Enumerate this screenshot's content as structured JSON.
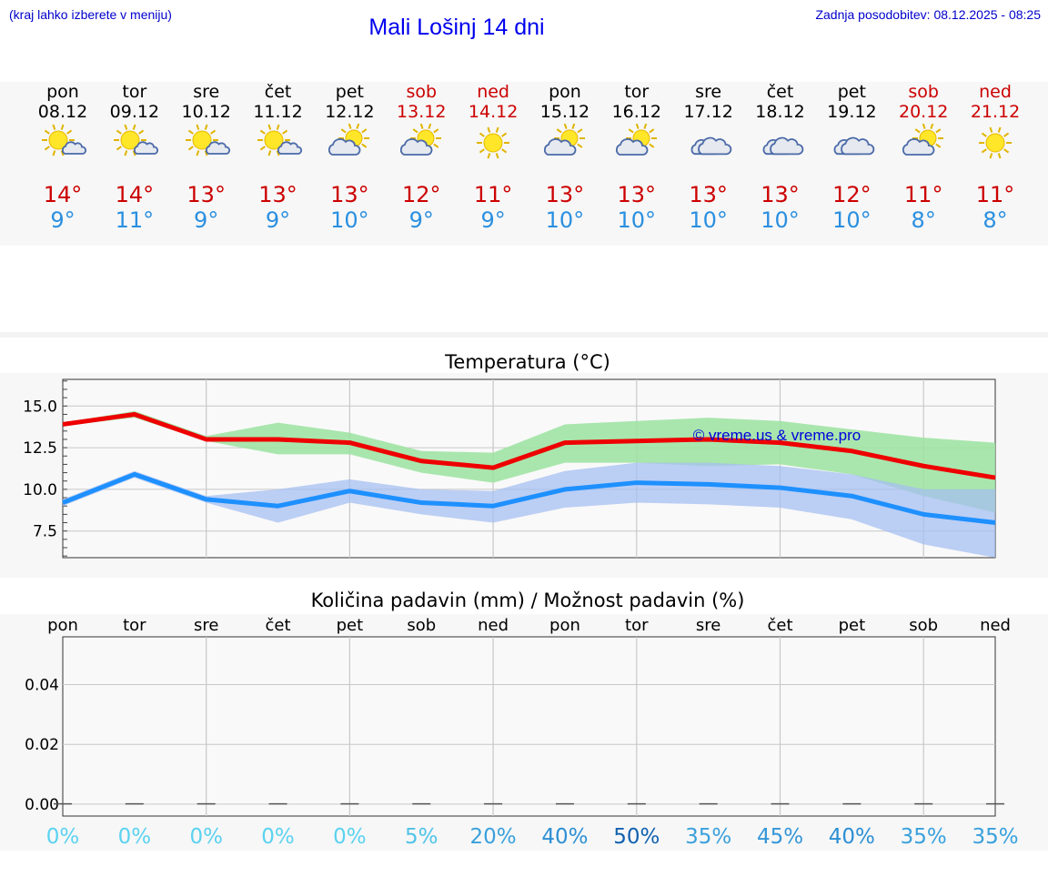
{
  "header": {
    "hint": "(kraj lahko izberete v meniju)",
    "title": "Mali Lošinj 14 dni",
    "updated": "Zadnja posodobitev: 08.12.2025 - 08:25"
  },
  "forecast": {
    "days": [
      {
        "name": "pon",
        "date": "08.12",
        "weekend": false,
        "icon": "sun-cloud-icon",
        "max": "14°",
        "min": "9°"
      },
      {
        "name": "tor",
        "date": "09.12",
        "weekend": false,
        "icon": "sun-cloud-icon",
        "max": "14°",
        "min": "11°"
      },
      {
        "name": "sre",
        "date": "10.12",
        "weekend": false,
        "icon": "sun-cloud-icon",
        "max": "13°",
        "min": "9°"
      },
      {
        "name": "čet",
        "date": "11.12",
        "weekend": false,
        "icon": "sun-cloud-icon",
        "max": "13°",
        "min": "9°"
      },
      {
        "name": "pet",
        "date": "12.12",
        "weekend": false,
        "icon": "cloud-sun-icon",
        "max": "13°",
        "min": "10°"
      },
      {
        "name": "sob",
        "date": "13.12",
        "weekend": true,
        "icon": "cloud-sun-icon",
        "max": "12°",
        "min": "9°"
      },
      {
        "name": "ned",
        "date": "14.12",
        "weekend": true,
        "icon": "sun-icon",
        "max": "11°",
        "min": "9°"
      },
      {
        "name": "pon",
        "date": "15.12",
        "weekend": false,
        "icon": "cloud-sun-icon",
        "max": "13°",
        "min": "10°"
      },
      {
        "name": "tor",
        "date": "16.12",
        "weekend": false,
        "icon": "cloud-sun-icon",
        "max": "13°",
        "min": "10°"
      },
      {
        "name": "sre",
        "date": "17.12",
        "weekend": false,
        "icon": "cloud-icon",
        "max": "13°",
        "min": "10°"
      },
      {
        "name": "čet",
        "date": "18.12",
        "weekend": false,
        "icon": "cloud-icon",
        "max": "13°",
        "min": "10°"
      },
      {
        "name": "pet",
        "date": "19.12",
        "weekend": false,
        "icon": "cloud-icon",
        "max": "12°",
        "min": "10°"
      },
      {
        "name": "sob",
        "date": "20.12",
        "weekend": true,
        "icon": "cloud-sun-icon",
        "max": "11°",
        "min": "8°"
      },
      {
        "name": "ned",
        "date": "21.12",
        "weekend": true,
        "icon": "sun-icon",
        "max": "11°",
        "min": "8°"
      }
    ]
  },
  "chart_data": [
    {
      "type": "line",
      "title": "Temperatura (°C)",
      "watermark": "© vreme.us & vreme.pro",
      "xlabel": "",
      "ylabel": "",
      "x": [
        0,
        1,
        2,
        3,
        4,
        5,
        6,
        7,
        8,
        9,
        10,
        11,
        12,
        13
      ],
      "ylim": [
        5.9,
        16.6
      ],
      "yticks": [
        7.5,
        10.0,
        12.5,
        15.0
      ],
      "ytick_labels": [
        "7.5",
        "10.0",
        "12.5",
        "15.0"
      ],
      "grid": true,
      "colors": {
        "max": "#ee0000",
        "min": "#1e90ff",
        "max_band": "#9be3a0",
        "min_band": "#a6bff2",
        "overlap": "#7dc4b2"
      },
      "series": [
        {
          "name": "max",
          "values": [
            13.9,
            14.5,
            13.0,
            13.0,
            12.8,
            11.7,
            11.3,
            12.8,
            12.9,
            13.0,
            12.8,
            12.3,
            11.4,
            10.7
          ]
        },
        {
          "name": "min",
          "values": [
            9.2,
            10.9,
            9.4,
            9.0,
            9.9,
            9.2,
            9.0,
            10.0,
            10.4,
            10.3,
            10.1,
            9.6,
            8.5,
            8.0
          ]
        }
      ],
      "bands": [
        {
          "name": "max_range",
          "lower": [
            13.8,
            14.3,
            12.9,
            12.1,
            12.1,
            11.0,
            10.4,
            11.6,
            11.6,
            11.4,
            11.5,
            10.9,
            9.6,
            8.6
          ],
          "upper": [
            14.0,
            14.7,
            13.2,
            14.0,
            13.4,
            12.3,
            12.2,
            13.9,
            14.1,
            14.3,
            14.1,
            13.6,
            13.1,
            12.8
          ]
        },
        {
          "name": "min_range",
          "lower": [
            9.0,
            10.7,
            9.2,
            8.0,
            9.2,
            8.5,
            8.0,
            8.9,
            9.2,
            9.1,
            8.9,
            8.2,
            6.7,
            5.9
          ],
          "upper": [
            9.4,
            11.1,
            9.6,
            10.0,
            10.6,
            10.0,
            9.9,
            11.1,
            11.6,
            11.6,
            11.4,
            10.9,
            10.0,
            10.0
          ]
        }
      ]
    },
    {
      "type": "bar",
      "title": "Količina padavin (mm) / Možnost padavin (%)",
      "categories": [
        "pon",
        "tor",
        "sre",
        "čet",
        "pet",
        "sob",
        "ned",
        "pon",
        "tor",
        "sre",
        "čet",
        "pet",
        "sob",
        "ned"
      ],
      "values": [
        0,
        0,
        0,
        0,
        0,
        0,
        0,
        0,
        0,
        0,
        0,
        0,
        0,
        0
      ],
      "ylim": [
        -0.004,
        0.056
      ],
      "yticks": [
        0.0,
        0.02,
        0.04
      ],
      "ytick_labels": [
        "0.00",
        "0.02",
        "0.04"
      ],
      "grid": true,
      "probability": [
        "0%",
        "0%",
        "0%",
        "0%",
        "0%",
        "5%",
        "20%",
        "40%",
        "50%",
        "35%",
        "45%",
        "40%",
        "35%",
        "35%"
      ],
      "probability_colors": [
        "#5ad2f0",
        "#5ad2f0",
        "#5ad2f0",
        "#5ad2f0",
        "#5ad2f0",
        "#4fc3e8",
        "#3aa0dc",
        "#2d8fd4",
        "#1060b0",
        "#3aa0dc",
        "#3596d8",
        "#2d8fd4",
        "#3aa0dc",
        "#3aa0dc"
      ]
    }
  ]
}
